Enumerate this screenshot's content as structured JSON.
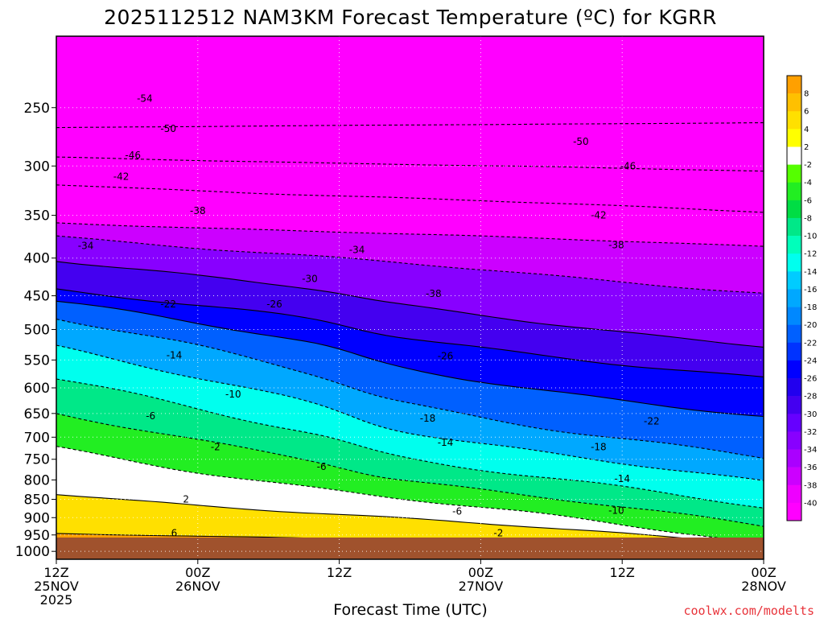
{
  "chart_data": {
    "type": "heatmap",
    "title": "2025112512 NAM3KM Forecast Temperature (ºC) for KGRR",
    "xlabel": "Forecast Time (UTC)",
    "ylabel": "",
    "x_ticks": [
      {
        "hours": 0,
        "line1": "12Z",
        "line2": "25NOV",
        "line3": "2025"
      },
      {
        "hours": 12,
        "line1": "00Z",
        "line2": "26NOV",
        "line3": ""
      },
      {
        "hours": 24,
        "line1": "12Z",
        "line2": "",
        "line3": ""
      },
      {
        "hours": 36,
        "line1": "00Z",
        "line2": "27NOV",
        "line3": ""
      },
      {
        "hours": 48,
        "line1": "12Z",
        "line2": "",
        "line3": ""
      },
      {
        "hours": 60,
        "line1": "00Z",
        "line2": "28NOV",
        "line3": ""
      }
    ],
    "xlim_hours": [
      0,
      60
    ],
    "y_ticks_hpa": [
      250,
      300,
      350,
      400,
      450,
      500,
      550,
      600,
      650,
      700,
      750,
      800,
      850,
      900,
      950,
      1000
    ],
    "ylim_hpa": [
      200,
      1025
    ],
    "y_scale": "log",
    "colorbar_ticks": [
      8,
      6,
      4,
      2,
      -2,
      -4,
      -6,
      -8,
      -10,
      -12,
      -14,
      -16,
      -18,
      -20,
      -22,
      -24,
      -26,
      -28,
      -30,
      -32,
      -34,
      -36,
      -38,
      -40
    ],
    "colorbar_colors": [
      "#ffa000",
      "#ffc000",
      "#ffe000",
      "#ffff00",
      "#ffffff",
      "#55ff00",
      "#22ee22",
      "#00dd44",
      "#00e888",
      "#00ffbb",
      "#00ffee",
      "#00ccff",
      "#00a8ff",
      "#0088ff",
      "#0060ff",
      "#0033ff",
      "#0000ff",
      "#2200ee",
      "#4400f0",
      "#6600ff",
      "#8800ff",
      "#aa00ff",
      "#cc00ff",
      "#ee00ff",
      "#ff00ff"
    ],
    "contour_levels": [
      {
        "value": -50,
        "label": "-50",
        "p_start": 266,
        "p_end": 262,
        "style": "dashed"
      },
      {
        "value": -46,
        "label": "-46",
        "p_start": 292,
        "p_end": 305,
        "style": "dashed"
      },
      {
        "value": -42,
        "label": "-42",
        "p_start": 318,
        "p_end": 346,
        "style": "dashed"
      },
      {
        "value": -38,
        "label": "-38",
        "p_start": 358,
        "p_end": 385,
        "style": "dashed"
      },
      {
        "value": -34,
        "label": "-34",
        "p_start": 372,
        "p_end": 445,
        "style": "dashed"
      },
      {
        "value": -30,
        "label": "-30",
        "p_start": 405,
        "p_end": 520,
        "style": "solid"
      },
      {
        "value": -26,
        "label": "-26",
        "p_start": 445,
        "p_end": 575,
        "style": "solid"
      },
      {
        "value": -22,
        "label": "-22",
        "p_start": 465,
        "p_end": 650,
        "style": "solid"
      },
      {
        "value": -18,
        "label": "-18",
        "p_start": 495,
        "p_end": 740,
        "style": "dashed"
      },
      {
        "value": -14,
        "label": "-14",
        "p_start": 545,
        "p_end": 800,
        "style": "dashed"
      },
      {
        "value": -10,
        "label": "-10",
        "p_start": 600,
        "p_end": 865,
        "style": "dashed"
      },
      {
        "value": -6,
        "label": "-6",
        "p_start": 665,
        "p_end": 915,
        "style": "dashed"
      },
      {
        "value": -2,
        "label": "-2",
        "p_start": 725,
        "p_end": 975,
        "style": "dashed"
      },
      {
        "value": 2,
        "label": "2",
        "p_start": 835,
        "p_end": 975,
        "style": "solid"
      },
      {
        "value": 6,
        "label": "6",
        "p_start": 945,
        "p_end": 985,
        "style": "solid"
      }
    ],
    "contour_labels": [
      {
        "text": "-54",
        "hours": 7.5,
        "p": 243
      },
      {
        "text": "-50",
        "hours": 9.5,
        "p": 267
      },
      {
        "text": "-46",
        "hours": 6.5,
        "p": 290
      },
      {
        "text": "-42",
        "hours": 5.5,
        "p": 310
      },
      {
        "text": "-38",
        "hours": 12,
        "p": 345
      },
      {
        "text": "-34",
        "hours": 2.5,
        "p": 385
      },
      {
        "text": "-34",
        "hours": 25.5,
        "p": 390
      },
      {
        "text": "-30",
        "hours": 21.5,
        "p": 427
      },
      {
        "text": "-26",
        "hours": 18.5,
        "p": 462
      },
      {
        "text": "-22",
        "hours": 9.5,
        "p": 462
      },
      {
        "text": "-38",
        "hours": 32,
        "p": 447
      },
      {
        "text": "-14",
        "hours": 10,
        "p": 542
      },
      {
        "text": "-10",
        "hours": 15,
        "p": 612
      },
      {
        "text": "-6",
        "hours": 8,
        "p": 655
      },
      {
        "text": "-26",
        "hours": 33,
        "p": 543
      },
      {
        "text": "-18",
        "hours": 31.5,
        "p": 660
      },
      {
        "text": "-14",
        "hours": 33,
        "p": 712
      },
      {
        "text": "-2",
        "hours": 13.5,
        "p": 722
      },
      {
        "text": "-6",
        "hours": 22.5,
        "p": 768
      },
      {
        "text": "2",
        "hours": 11,
        "p": 850
      },
      {
        "text": "6",
        "hours": 10,
        "p": 945
      },
      {
        "text": "-6",
        "hours": 34,
        "p": 883
      },
      {
        "text": "-2",
        "hours": 37.5,
        "p": 944
      },
      {
        "text": "-10",
        "hours": 47.5,
        "p": 880
      },
      {
        "text": "-14",
        "hours": 48,
        "p": 797
      },
      {
        "text": "-18",
        "hours": 46,
        "p": 722
      },
      {
        "text": "-22",
        "hours": 50.5,
        "p": 666
      },
      {
        "text": "-38",
        "hours": 47.5,
        "p": 384
      },
      {
        "text": "-42",
        "hours": 46,
        "p": 350
      },
      {
        "text": "-46",
        "hours": 48.5,
        "p": 300
      },
      {
        "text": "-50",
        "hours": 44.5,
        "p": 278
      }
    ]
  },
  "credit": "coolwx.com/modelts"
}
